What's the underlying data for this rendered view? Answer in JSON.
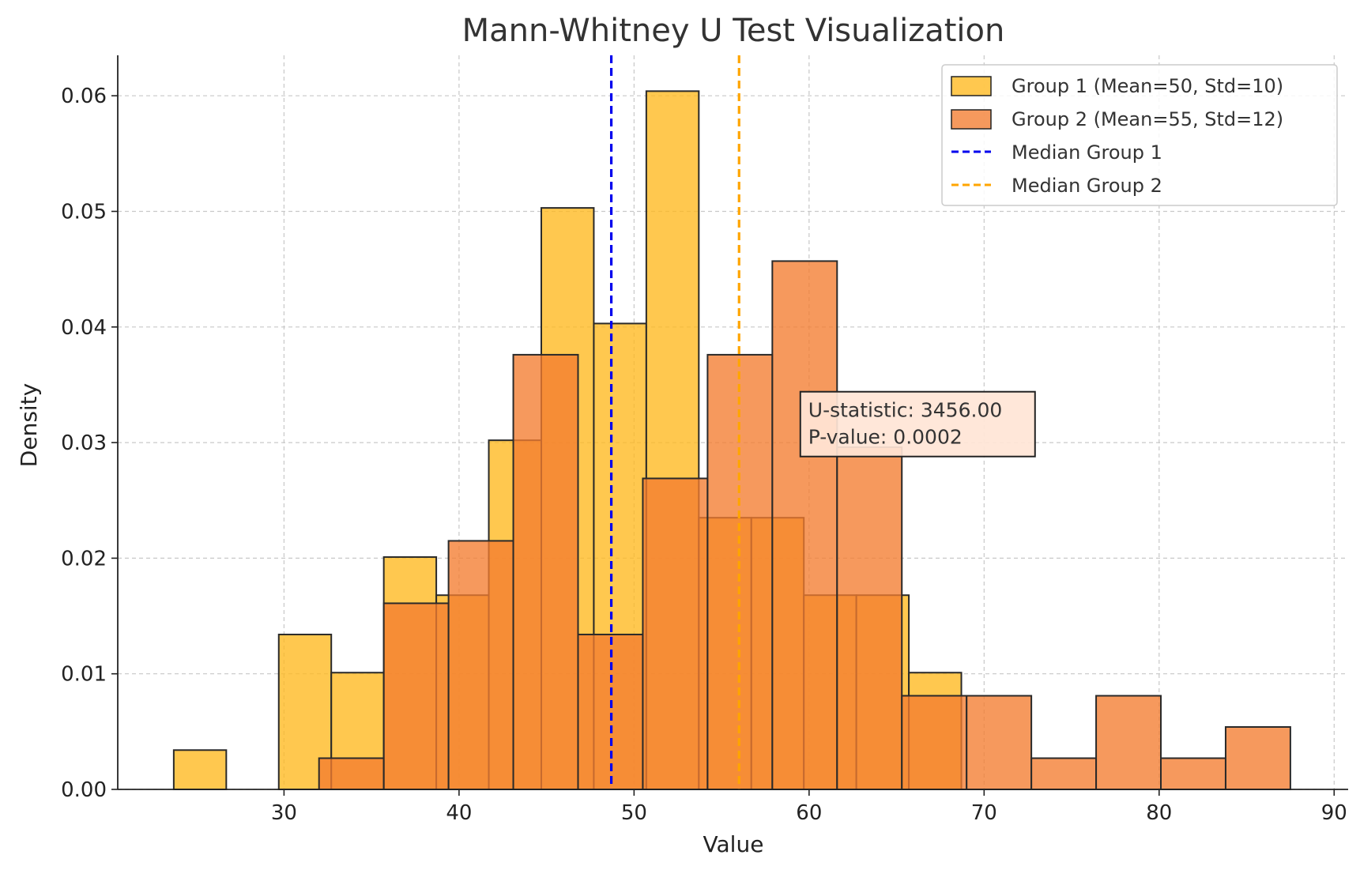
{
  "chart_data": {
    "type": "bar",
    "title": "Mann-Whitney U Test Visualization",
    "xlabel": "Value",
    "ylabel": "Density",
    "xlim": [
      20.5,
      90.8
    ],
    "ylim": [
      0,
      0.0635
    ],
    "xticks": [
      "30",
      "40",
      "50",
      "60",
      "70",
      "80",
      "90"
    ],
    "yticks": [
      "0.00",
      "0.01",
      "0.02",
      "0.03",
      "0.04",
      "0.05",
      "0.06"
    ],
    "grid": true,
    "legend_position": "top-right",
    "series": [
      {
        "name": "Group 1 (Mean=50, Std=10)",
        "color": "#FFB81E",
        "bins": [
          {
            "x0": 23.7,
            "x1": 26.7,
            "density": 0.0034
          },
          {
            "x0": 26.7,
            "x1": 29.7,
            "density": 0.0
          },
          {
            "x0": 29.7,
            "x1": 32.7,
            "density": 0.0134
          },
          {
            "x0": 32.7,
            "x1": 35.7,
            "density": 0.0101
          },
          {
            "x0": 35.7,
            "x1": 38.7,
            "density": 0.0201
          },
          {
            "x0": 38.7,
            "x1": 41.7,
            "density": 0.0168
          },
          {
            "x0": 41.7,
            "x1": 44.7,
            "density": 0.0302
          },
          {
            "x0": 44.7,
            "x1": 47.7,
            "density": 0.0503
          },
          {
            "x0": 47.7,
            "x1": 50.7,
            "density": 0.0403
          },
          {
            "x0": 50.7,
            "x1": 53.7,
            "density": 0.0604
          },
          {
            "x0": 53.7,
            "x1": 56.7,
            "density": 0.0235
          },
          {
            "x0": 56.7,
            "x1": 59.7,
            "density": 0.0235
          },
          {
            "x0": 59.7,
            "x1": 62.7,
            "density": 0.0168
          },
          {
            "x0": 62.7,
            "x1": 65.7,
            "density": 0.0168
          },
          {
            "x0": 65.7,
            "x1": 68.7,
            "density": 0.0101
          }
        ]
      },
      {
        "name": "Group 2 (Mean=55, Std=12)",
        "color": "#F47C30",
        "bins": [
          {
            "x0": 32.0,
            "x1": 35.7,
            "density": 0.0027
          },
          {
            "x0": 35.7,
            "x1": 39.4,
            "density": 0.0161
          },
          {
            "x0": 39.4,
            "x1": 43.1,
            "density": 0.0215
          },
          {
            "x0": 43.1,
            "x1": 46.8,
            "density": 0.0376
          },
          {
            "x0": 46.8,
            "x1": 50.5,
            "density": 0.0134
          },
          {
            "x0": 50.5,
            "x1": 54.2,
            "density": 0.0269
          },
          {
            "x0": 54.2,
            "x1": 57.9,
            "density": 0.0376
          },
          {
            "x0": 57.9,
            "x1": 61.6,
            "density": 0.0457
          },
          {
            "x0": 61.6,
            "x1": 65.3,
            "density": 0.0296
          },
          {
            "x0": 65.3,
            "x1": 69.0,
            "density": 0.0081
          },
          {
            "x0": 69.0,
            "x1": 72.7,
            "density": 0.0081
          },
          {
            "x0": 72.7,
            "x1": 76.4,
            "density": 0.0027
          },
          {
            "x0": 76.4,
            "x1": 80.1,
            "density": 0.0081
          },
          {
            "x0": 80.1,
            "x1": 83.8,
            "density": 0.0027
          },
          {
            "x0": 83.8,
            "x1": 87.5,
            "density": 0.0054
          }
        ]
      }
    ],
    "medians": [
      {
        "name": "Median Group 1",
        "value": 48.7,
        "color": "#0000EE"
      },
      {
        "name": "Median Group 2",
        "value": 56.0,
        "color": "#FFA500"
      }
    ],
    "annotation": {
      "line1": "U-statistic: 3456.00",
      "line2": "P-value: 0.0002",
      "x": 59.5,
      "y": 0.0344
    }
  }
}
